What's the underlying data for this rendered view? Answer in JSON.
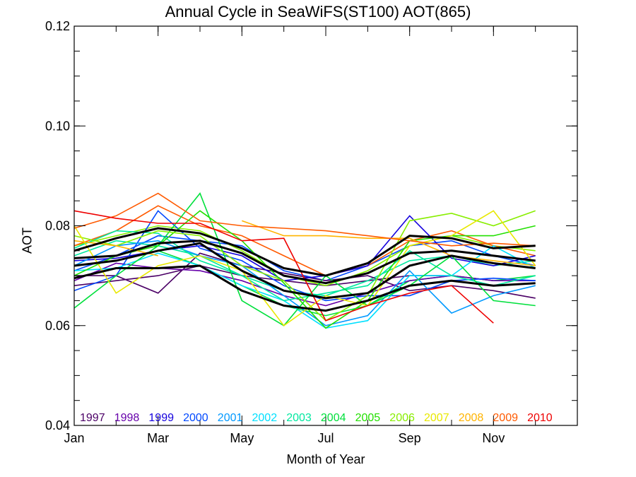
{
  "chart_data": {
    "type": "line",
    "title": "Annual Cycle in SeaWiFS(ST100) AOT(865)",
    "xlabel": "Month of Year",
    "ylabel": "AOT",
    "xlim": [
      1,
      13
    ],
    "ylim": [
      0.04,
      0.12
    ],
    "x_ticks": [
      {
        "value": 1,
        "label": "Jan"
      },
      {
        "value": 3,
        "label": "Mar"
      },
      {
        "value": 5,
        "label": "May"
      },
      {
        "value": 7,
        "label": "Jul"
      },
      {
        "value": 9,
        "label": "Sep"
      },
      {
        "value": 11,
        "label": "Nov"
      }
    ],
    "y_ticks": [
      {
        "value": 0.04,
        "label": "0.04"
      },
      {
        "value": 0.06,
        "label": "0.06"
      },
      {
        "value": 0.08,
        "label": "0.08"
      },
      {
        "value": 0.1,
        "label": "0.10"
      },
      {
        "value": 0.12,
        "label": "0.12"
      }
    ],
    "grid": false,
    "legend_position": "bottom, inside plot",
    "x": [
      1,
      2,
      3,
      4,
      5,
      6,
      7,
      8,
      9,
      10,
      11,
      12
    ],
    "series": [
      {
        "name": "1997",
        "color": "#4b0066",
        "values": [
          0.07,
          0.07,
          0.0665,
          0.0745,
          0.072,
          0.0705,
          0.069,
          0.07,
          0.067,
          0.068,
          0.067,
          0.0655
        ]
      },
      {
        "name": "1998",
        "color": "#6600aa",
        "values": [
          0.069,
          0.0725,
          0.0715,
          0.071,
          0.069,
          0.066,
          0.064,
          0.0665,
          0.069,
          0.07,
          0.069,
          0.069
        ]
      },
      {
        "name": "1999",
        "color": "#1400dd",
        "values": [
          0.073,
          0.0735,
          0.075,
          0.076,
          0.074,
          0.069,
          0.07,
          0.072,
          0.082,
          0.0735,
          0.072,
          0.074
        ]
      },
      {
        "name": "2000",
        "color": "#0048ff",
        "values": [
          0.067,
          0.07,
          0.083,
          0.0755,
          0.073,
          0.068,
          0.065,
          0.066,
          0.066,
          0.069,
          0.0695,
          0.069
        ]
      },
      {
        "name": "2001",
        "color": "#0099ff",
        "values": [
          0.072,
          0.076,
          0.077,
          0.074,
          0.072,
          0.066,
          0.06,
          0.062,
          0.071,
          0.0625,
          0.066,
          0.068
        ]
      },
      {
        "name": "2002",
        "color": "#00e0ff",
        "values": [
          0.071,
          0.0715,
          0.0745,
          0.072,
          0.068,
          0.065,
          0.0595,
          0.061,
          0.07,
          0.07,
          0.076,
          0.0715
        ]
      },
      {
        "name": "2003",
        "color": "#00e8a0",
        "values": [
          0.0755,
          0.079,
          0.0785,
          0.073,
          0.07,
          0.065,
          0.0665,
          0.068,
          0.075,
          0.07,
          0.068,
          0.07
        ]
      },
      {
        "name": "2004",
        "color": "#00e03c",
        "values": [
          0.0635,
          0.07,
          0.076,
          0.0865,
          0.065,
          0.06,
          0.07,
          0.064,
          0.068,
          0.074,
          0.065,
          0.064
        ]
      },
      {
        "name": "2005",
        "color": "#22e000",
        "values": [
          0.07,
          0.074,
          0.076,
          0.083,
          0.077,
          0.0685,
          0.0595,
          0.065,
          0.077,
          0.078,
          0.078,
          0.08
        ]
      },
      {
        "name": "2006",
        "color": "#88ee00",
        "values": [
          0.078,
          0.076,
          0.079,
          0.078,
          0.072,
          0.069,
          0.061,
          0.066,
          0.081,
          0.0825,
          0.08,
          0.083
        ]
      },
      {
        "name": "2007",
        "color": "#e8e800",
        "values": [
          0.08,
          0.0665,
          0.072,
          0.074,
          0.071,
          0.06,
          0.066,
          0.064,
          0.076,
          0.078,
          0.083,
          0.072
        ]
      },
      {
        "name": "2008",
        "color": "#ffb400",
        "values": [
          0.077,
          0.076,
          0.074,
          null,
          0.081,
          0.078,
          0.078,
          0.0775,
          0.0775,
          0.074,
          0.073,
          0.072
        ]
      },
      {
        "name": "2009",
        "color": "#ff5a00",
        "values": [
          0.0795,
          0.082,
          0.0865,
          0.081,
          0.08,
          0.0795,
          0.079,
          0.078,
          0.077,
          0.076,
          0.0765,
          0.076
        ]
      },
      {
        "name": "2010",
        "color": "#ee0000",
        "values": [
          0.083,
          0.0815,
          0.0805,
          0.0805,
          0.077,
          0.0775,
          0.061,
          0.064,
          0.0665,
          0.068,
          0.0605,
          null
        ]
      }
    ],
    "extra_lines": [
      {
        "color": "#4b0066",
        "values": [
          0.068,
          0.069,
          0.07,
          0.072,
          0.07,
          0.069,
          0.068,
          0.069,
          0.07,
          0.07,
          0.069,
          0.069
        ]
      },
      {
        "color": "#0048ff",
        "values": [
          0.071,
          0.074,
          0.078,
          0.077,
          0.076,
          0.071,
          0.069,
          0.072,
          0.076,
          0.077,
          0.074,
          0.072
        ]
      },
      {
        "color": "#00e8a0",
        "values": [
          0.074,
          0.077,
          0.076,
          0.074,
          0.07,
          0.067,
          0.066,
          0.069,
          0.073,
          0.074,
          0.072,
          0.073
        ]
      },
      {
        "color": "#88ee00",
        "values": [
          0.076,
          0.078,
          0.08,
          0.079,
          0.075,
          0.07,
          0.068,
          0.071,
          0.076,
          0.078,
          0.076,
          0.075
        ]
      },
      {
        "color": "#ff5a00",
        "values": [
          0.076,
          0.079,
          0.084,
          0.08,
          0.078,
          0.074,
          0.07,
          0.072,
          0.077,
          0.079,
          0.076,
          0.074
        ]
      },
      {
        "color": "#00e03c",
        "values": [
          0.072,
          0.073,
          0.075,
          0.072,
          0.068,
          0.064,
          0.062,
          0.064,
          0.069,
          0.07,
          0.069,
          0.07
        ]
      }
    ],
    "black_lines": [
      {
        "values": [
          0.075,
          0.0775,
          0.0795,
          0.0785,
          0.0755,
          0.0715,
          0.07,
          0.0725,
          0.078,
          0.0775,
          0.0755,
          0.076
        ]
      },
      {
        "values": [
          0.0735,
          0.074,
          0.0765,
          0.077,
          0.0745,
          0.07,
          0.0685,
          0.0705,
          0.0745,
          0.075,
          0.074,
          0.073
        ]
      },
      {
        "values": [
          0.072,
          0.073,
          0.075,
          0.0765,
          0.071,
          0.067,
          0.0655,
          0.0665,
          0.072,
          0.074,
          0.0725,
          0.0715
        ]
      },
      {
        "values": [
          0.0695,
          0.0715,
          0.0715,
          0.072,
          0.067,
          0.064,
          0.063,
          0.065,
          0.068,
          0.069,
          0.068,
          0.0685
        ]
      }
    ]
  }
}
